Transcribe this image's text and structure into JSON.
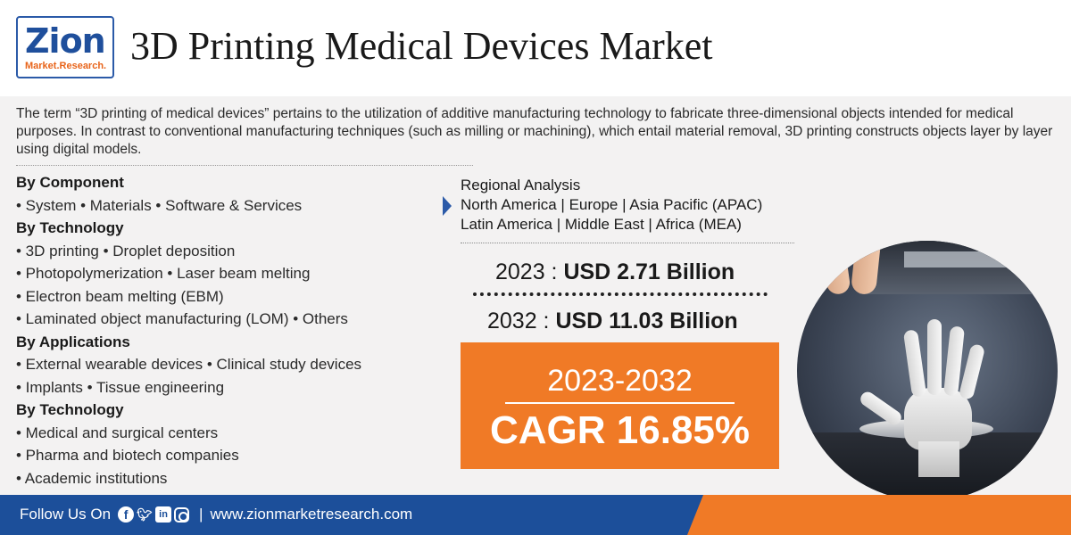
{
  "header": {
    "logo_main": "Zion",
    "logo_sub": "Market.Research.",
    "title": "3D Printing Medical Devices Market"
  },
  "intro": "The term “3D printing of medical devices” pertains to the utilization of additive manufacturing technology to fabricate three-dimensional objects intended for medical purposes. In contrast to conventional manufacturing techniques (such as milling or machining), which entail material removal, 3D printing constructs objects layer by layer using digital models.",
  "segments": [
    {
      "type": "head",
      "text": "By Component"
    },
    {
      "type": "item",
      "text": "• System • Materials • Software & Services"
    },
    {
      "type": "head",
      "text": "By Technology"
    },
    {
      "type": "item",
      "text": "• 3D printing • Droplet deposition"
    },
    {
      "type": "item",
      "text": "• Photopolymerization • Laser beam melting"
    },
    {
      "type": "item",
      "text": "• Electron beam melting (EBM)"
    },
    {
      "type": "item",
      "text": "• Laminated object manufacturing (LOM) • Others"
    },
    {
      "type": "head",
      "text": "By Applications"
    },
    {
      "type": "item",
      "text": "• External wearable devices • Clinical study devices"
    },
    {
      "type": "item",
      "text": "• Implants • Tissue engineering"
    },
    {
      "type": "head",
      "text": "By Technology"
    },
    {
      "type": "item",
      "text": "• Medical and surgical centers"
    },
    {
      "type": "item",
      "text": "• Pharma and biotech companies"
    },
    {
      "type": "item",
      "text": "• Academic institutions"
    }
  ],
  "regional": {
    "title": "Regional Analysis",
    "line1": "North America | Europe | Asia Pacific (APAC)",
    "line2": "Latin America | Middle East | Africa (MEA)"
  },
  "market_values": {
    "year1": "2023 : ",
    "value1": "USD 2.71 Billion",
    "year2": "2032 : ",
    "value2": "USD 11.03 Billion"
  },
  "cagr": {
    "period": "2023-2032",
    "value": "CAGR 16.85%"
  },
  "footer": {
    "follow_label": "Follow Us On",
    "separator": "|",
    "website": "www.zionmarketresearch.com",
    "social_icons": [
      "facebook-icon",
      "twitter-icon",
      "linkedin-icon",
      "instagram-icon"
    ]
  },
  "colors": {
    "brand_blue": "#1c4f9a",
    "brand_orange": "#f07a26",
    "panel_bg": "#f3f2f2"
  }
}
